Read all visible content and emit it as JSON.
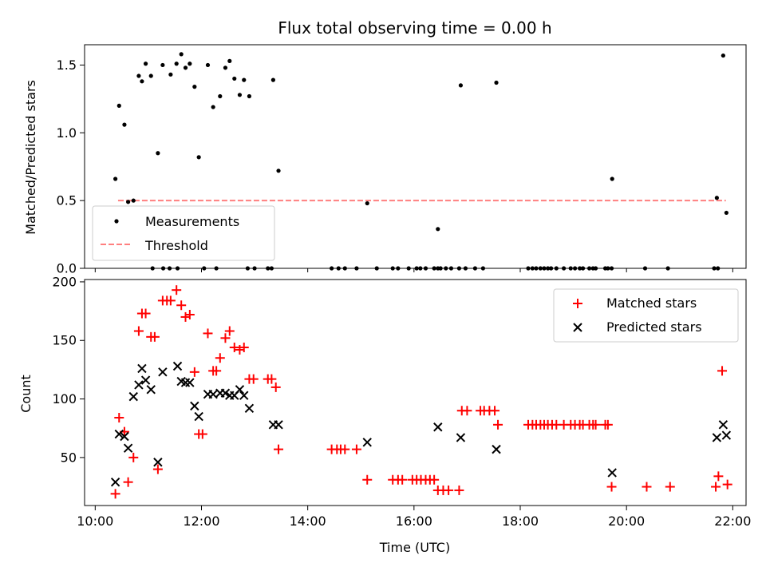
{
  "chart_data": [
    {
      "type": "scatter",
      "title": "Flux total observing time = 0.00 h",
      "xlabel": "",
      "ylabel": "Matched/Predicted stars",
      "ylim": [
        0,
        1.65
      ],
      "yticks": [
        0.0,
        0.5,
        1.0,
        1.5
      ],
      "ytick_labels": [
        "0.0",
        "0.5",
        "1.0",
        "1.5"
      ],
      "legend": {
        "placement": "lower-left",
        "entries": [
          {
            "label": "Measurements",
            "marker": "dot",
            "color": "#000000"
          },
          {
            "label": "Threshold",
            "marker": "dashed-line",
            "color": "#ff7f7f"
          }
        ]
      },
      "threshold": {
        "name": "Threshold",
        "value": 0.5,
        "x_range": [
          10.43,
          21.87
        ],
        "color": "#ff7f7f"
      },
      "series": [
        {
          "name": "Measurements",
          "color": "#000000",
          "x": [
            10.38,
            10.45,
            10.55,
            10.62,
            10.72,
            10.82,
            10.88,
            10.95,
            11.05,
            11.18,
            11.27,
            11.42,
            11.53,
            11.62,
            11.7,
            11.78,
            11.87,
            11.95,
            12.12,
            12.22,
            12.35,
            12.45,
            12.53,
            12.62,
            12.72,
            12.8,
            12.9,
            13.35,
            13.45,
            15.12,
            16.45,
            16.88,
            17.55,
            19.73,
            21.7,
            21.82,
            21.88,
            11.08,
            11.28,
            11.4,
            11.55,
            12.05,
            12.28,
            12.87,
            13.0,
            13.25,
            13.32,
            14.45,
            14.58,
            14.7,
            14.92,
            15.3,
            15.6,
            15.7,
            15.9,
            16.05,
            16.12,
            16.22,
            16.38,
            16.45,
            16.5,
            16.6,
            16.7,
            16.85,
            16.97,
            17.15,
            17.3,
            18.15,
            18.23,
            18.3,
            18.38,
            18.45,
            18.52,
            18.58,
            18.68,
            18.82,
            18.95,
            19.03,
            19.12,
            19.18,
            19.3,
            19.37,
            19.42,
            19.6,
            19.65,
            19.72,
            20.35,
            20.78,
            21.65,
            21.72
          ],
          "y": [
            0.66,
            1.2,
            1.06,
            0.49,
            0.5,
            1.42,
            1.38,
            1.51,
            1.42,
            0.85,
            1.5,
            1.43,
            1.51,
            1.58,
            1.48,
            1.51,
            1.34,
            0.82,
            1.5,
            1.19,
            1.27,
            1.48,
            1.53,
            1.4,
            1.28,
            1.39,
            1.27,
            1.39,
            0.72,
            0.48,
            0.29,
            1.35,
            1.37,
            0.66,
            0.52,
            1.57,
            0.41,
            0,
            0,
            0,
            0,
            0,
            0,
            0,
            0,
            0,
            0,
            0,
            0,
            0,
            0,
            0,
            0,
            0,
            0,
            0,
            0,
            0,
            0,
            0,
            0,
            0,
            0,
            0,
            0,
            0,
            0,
            0,
            0,
            0,
            0,
            0,
            0,
            0,
            0,
            0,
            0,
            0,
            0,
            0,
            0,
            0,
            0,
            0,
            0,
            0,
            0,
            0,
            0,
            0
          ]
        }
      ]
    },
    {
      "type": "scatter",
      "title": "",
      "xlabel": "Time (UTC)",
      "ylabel": "Count",
      "ylim": [
        9,
        202
      ],
      "yticks": [
        50,
        100,
        150,
        200
      ],
      "ytick_labels": [
        "50",
        "100",
        "150",
        "200"
      ],
      "xlim": [
        9.8,
        22.25
      ],
      "xticks": [
        10,
        12,
        14,
        16,
        18,
        20,
        22
      ],
      "xtick_labels": [
        "10:00",
        "12:00",
        "14:00",
        "16:00",
        "18:00",
        "20:00",
        "22:00"
      ],
      "legend": {
        "placement": "top-right",
        "entries": [
          {
            "label": "Matched stars",
            "marker": "plus",
            "color": "#ff0000"
          },
          {
            "label": "Predicted stars",
            "marker": "x",
            "color": "#000000"
          }
        ]
      },
      "series": [
        {
          "name": "Matched stars",
          "marker": "plus",
          "color": "#ff0000",
          "x": [
            10.38,
            10.45,
            10.55,
            10.62,
            10.72,
            10.82,
            10.88,
            10.95,
            11.05,
            11.12,
            11.18,
            11.27,
            11.35,
            11.42,
            11.53,
            11.62,
            11.7,
            11.78,
            11.87,
            11.95,
            12.02,
            12.12,
            12.22,
            12.28,
            12.35,
            12.45,
            12.53,
            12.62,
            12.72,
            12.8,
            12.9,
            12.98,
            13.25,
            13.32,
            13.4,
            13.45,
            14.45,
            14.55,
            14.62,
            14.7,
            14.92,
            15.12,
            15.6,
            15.7,
            15.78,
            15.97,
            16.05,
            16.13,
            16.22,
            16.3,
            16.38,
            16.45,
            16.55,
            16.65,
            16.85,
            16.9,
            17.0,
            17.25,
            17.32,
            17.42,
            17.52,
            17.58,
            18.15,
            18.23,
            18.3,
            18.38,
            18.45,
            18.52,
            18.6,
            18.68,
            18.82,
            18.95,
            19.03,
            19.12,
            19.18,
            19.3,
            19.37,
            19.42,
            19.6,
            19.65,
            19.72,
            20.38,
            20.82,
            21.68,
            21.73,
            21.8,
            21.9
          ],
          "y": [
            19,
            84,
            72,
            29,
            50,
            158,
            173,
            173,
            153,
            153,
            40,
            184,
            184,
            184,
            193,
            180,
            170,
            172,
            123,
            70,
            70,
            156,
            124,
            124,
            135,
            152,
            158,
            144,
            142,
            144,
            117,
            117,
            117,
            117,
            110,
            57,
            57,
            57,
            57,
            57,
            57,
            31,
            31,
            31,
            31,
            31,
            31,
            31,
            31,
            31,
            31,
            22,
            22,
            22,
            22,
            90,
            90,
            90,
            90,
            90,
            90,
            78,
            78,
            78,
            78,
            78,
            78,
            78,
            78,
            78,
            78,
            78,
            78,
            78,
            78,
            78,
            78,
            78,
            78,
            78,
            25,
            25,
            25,
            25,
            34,
            124,
            27
          ]
        },
        {
          "name": "Predicted stars",
          "marker": "x",
          "color": "#000000",
          "x": [
            10.38,
            10.45,
            10.55,
            10.62,
            10.72,
            10.82,
            10.88,
            10.95,
            11.05,
            11.18,
            11.27,
            11.55,
            11.62,
            11.7,
            11.78,
            11.87,
            11.95,
            12.12,
            12.22,
            12.35,
            12.45,
            12.53,
            12.62,
            12.72,
            12.8,
            12.9,
            13.35,
            13.45,
            15.12,
            16.45,
            16.88,
            17.55,
            19.73,
            21.7,
            21.82,
            21.88
          ],
          "y": [
            29,
            70,
            68,
            58,
            102,
            112,
            126,
            116,
            108,
            46,
            123,
            128,
            115,
            114,
            114,
            94,
            85,
            104,
            104,
            105,
            105,
            103,
            103,
            108,
            103,
            92,
            78,
            78,
            63,
            76,
            67,
            57,
            37,
            67,
            78,
            69
          ]
        }
      ]
    }
  ]
}
